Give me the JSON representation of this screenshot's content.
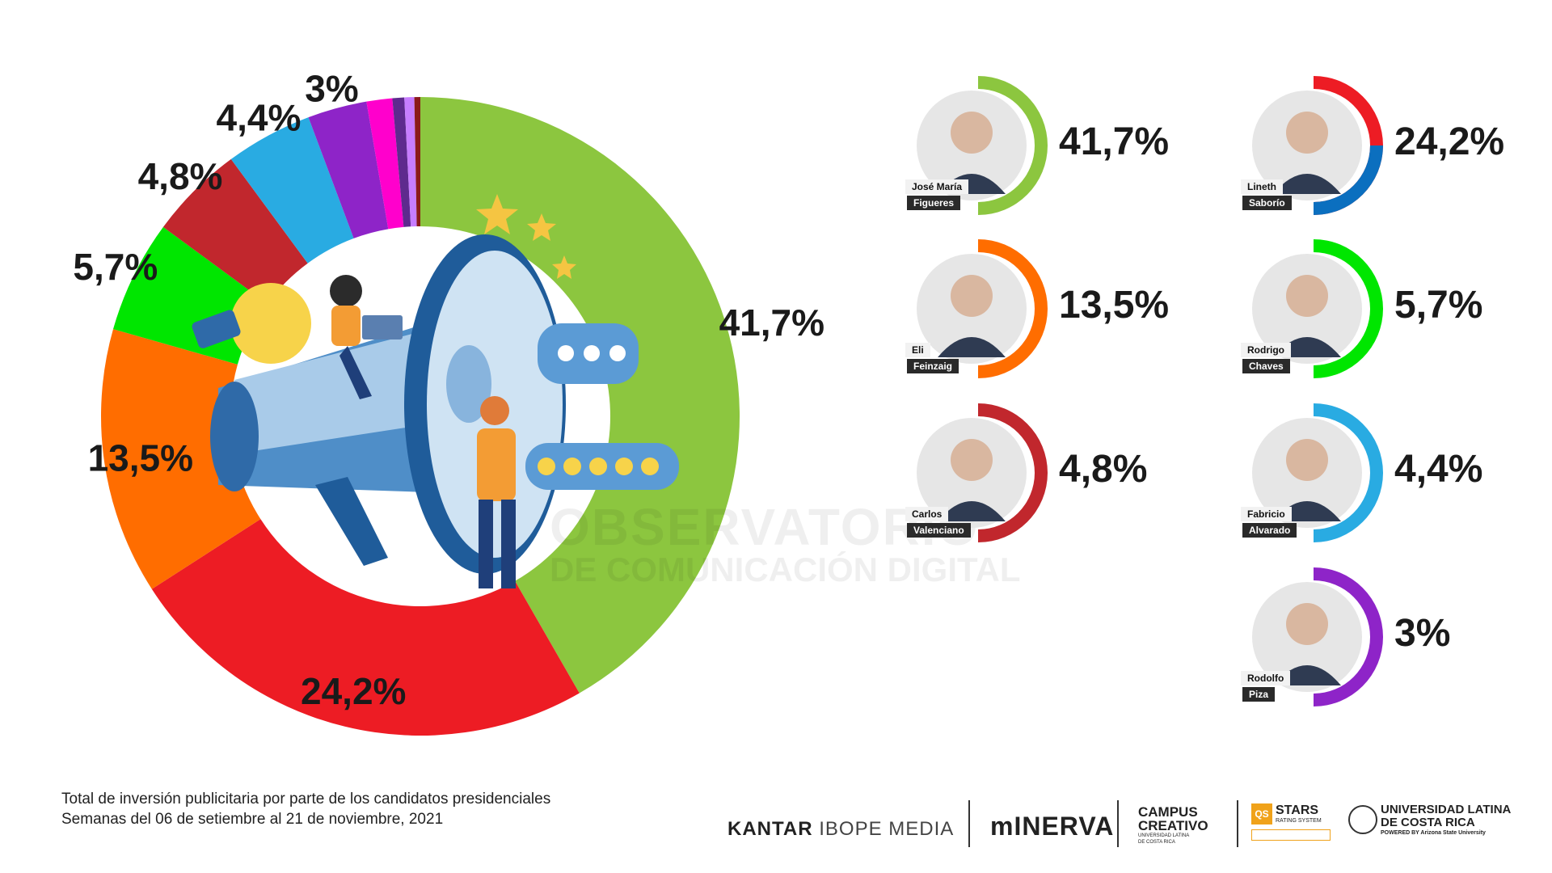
{
  "chart_data": {
    "type": "pie",
    "series": [
      {
        "label": "41,7%",
        "value": 41.7,
        "color": "#8cc63f"
      },
      {
        "label": "24,2%",
        "value": 24.2,
        "color": "#ed1c24"
      },
      {
        "label": "13,5%",
        "value": 13.5,
        "color": "#ff6d00"
      },
      {
        "label": "5,7%",
        "value": 5.7,
        "color": "#00e600"
      },
      {
        "label": "4,8%",
        "value": 4.8,
        "color": "#c1272d"
      },
      {
        "label": "4,4%",
        "value": 4.4,
        "color": "#29abe2"
      },
      {
        "label": "3%",
        "value": 3.0,
        "color": "#8e24c8"
      },
      {
        "label": "",
        "value": 1.3,
        "color": "#ff00cc"
      },
      {
        "label": "",
        "value": 0.6,
        "color": "#5e2a8e"
      },
      {
        "label": "",
        "value": 0.5,
        "color": "#c77dff"
      },
      {
        "label": "",
        "value": 0.3,
        "color": "#8b1a1a"
      }
    ]
  },
  "candidates": [
    {
      "first": "José María",
      "last": "Figueres",
      "pct": "41,7%",
      "value": 41.7,
      "color": "#8cc63f"
    },
    {
      "first": "Lineth",
      "last": "Saborío",
      "pct": "24,2%",
      "value": 24.2,
      "color": "#ed1c24",
      "color2": "#0b6fbf"
    },
    {
      "first": "Eli",
      "last": "Feinzaig",
      "pct": "13,5%",
      "value": 13.5,
      "color": "#ff6d00"
    },
    {
      "first": "Rodrigo",
      "last": "Chaves",
      "pct": "5,7%",
      "value": 5.7,
      "color": "#00e600"
    },
    {
      "first": "Carlos",
      "last": "Valenciano",
      "pct": "4,8%",
      "value": 4.8,
      "color": "#c1272d"
    },
    {
      "first": "Fabricio",
      "last": "Alvarado",
      "pct": "4,4%",
      "value": 4.4,
      "color": "#29abe2"
    },
    {
      "first": "Rodolfo",
      "last": "Piza",
      "pct": "3%",
      "value": 3.0,
      "color": "#8e24c8"
    }
  ],
  "watermark": {
    "line1": "OBSERVATORIO",
    "line2": "DE COMUNICACIÓN DIGITAL"
  },
  "footer": {
    "line1": "Total de inversión publicitaria por parte de los candidatos presidenciales",
    "line2": "Semanas del 06 de setiembre al 21 de noviembre, 2021"
  },
  "logos": {
    "kantar": "KANTAR",
    "ibope": "IBOPE MEDIA",
    "minerva": "mINERVA",
    "campus1": "CAMPUS",
    "campus2": "CREATIVO",
    "campus3": "UNIVERSIDAD LATINA DE COSTA RICA",
    "stars": "STARS",
    "stars_sub": "RATING SYSTEM",
    "qs": "QS",
    "ulatina1": "UNIVERSIDAD LATINA",
    "ulatina2": "DE COSTA RICA",
    "ulatina3": "POWERED BY Arizona State University"
  }
}
